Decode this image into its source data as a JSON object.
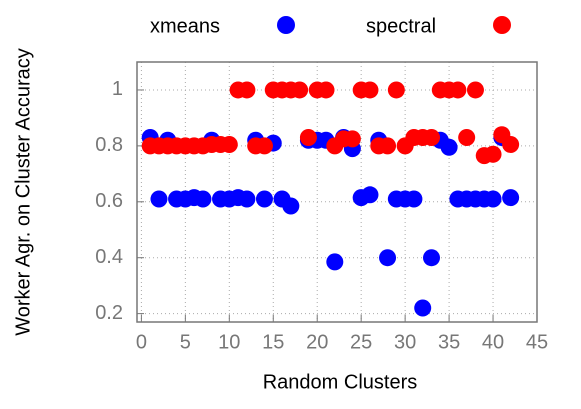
{
  "chart_data": {
    "type": "scatter",
    "x_label": "Random Clusters",
    "y_label": "Worker Agr. on Cluster Accuracy",
    "xlim": [
      -0.5,
      45
    ],
    "ylim": [
      0.17,
      1.1
    ],
    "xticks": [
      0,
      5,
      10,
      15,
      20,
      25,
      30,
      35,
      40,
      45
    ],
    "yticks": [
      0.2,
      0.4,
      0.6,
      0.8,
      1
    ],
    "grid": true,
    "legend": "top",
    "series": [
      {
        "name": "xmeans",
        "color": "#0000ff",
        "x": [
          1,
          2,
          3,
          4,
          5,
          6,
          7,
          8,
          9,
          10,
          11,
          12,
          13,
          14,
          15,
          16,
          17,
          19,
          20,
          21,
          22,
          23,
          24,
          25,
          26,
          27,
          28,
          29,
          30,
          31,
          32,
          33,
          34,
          35,
          36,
          37,
          38,
          39,
          40,
          41,
          42
        ],
        "values": [
          0.83,
          0.61,
          0.82,
          0.61,
          0.61,
          0.615,
          0.61,
          0.82,
          0.61,
          0.61,
          0.615,
          0.61,
          0.82,
          0.61,
          0.81,
          0.61,
          0.585,
          0.82,
          0.82,
          0.82,
          0.385,
          0.83,
          0.79,
          0.615,
          0.625,
          0.82,
          0.4,
          0.61,
          0.61,
          0.61,
          0.22,
          0.4,
          0.82,
          0.795,
          0.61,
          0.61,
          0.61,
          0.61,
          0.61,
          0.83,
          0.615
        ]
      },
      {
        "name": "spectral",
        "color": "#ff0000",
        "x": [
          1,
          2,
          3,
          4,
          5,
          6,
          7,
          8,
          9,
          10,
          11,
          12,
          13,
          14,
          15,
          16,
          17,
          18,
          19,
          20,
          21,
          22,
          23,
          24,
          25,
          26,
          27,
          28,
          29,
          30,
          31,
          32,
          33,
          34,
          35,
          36,
          37,
          38,
          39,
          40,
          41,
          42
        ],
        "values": [
          0.8,
          0.8,
          0.8,
          0.8,
          0.8,
          0.8,
          0.8,
          0.805,
          0.805,
          0.805,
          1,
          1,
          0.8,
          0.8,
          1,
          1,
          1,
          1,
          0.83,
          1,
          1,
          0.8,
          0.825,
          0.825,
          1,
          1,
          0.8,
          0.8,
          1,
          0.8,
          0.83,
          0.83,
          0.83,
          1,
          1,
          1,
          0.83,
          1,
          0.765,
          0.77,
          0.84,
          0.805
        ]
      }
    ]
  }
}
